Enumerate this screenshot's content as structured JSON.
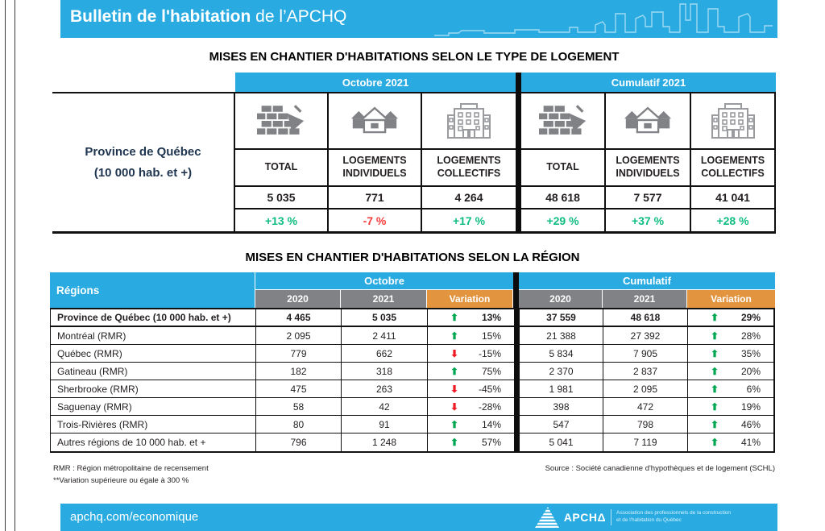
{
  "header": {
    "title_bold": "Bulletin de l'habitation",
    "title_rest": " de l’APCHQ"
  },
  "colors": {
    "blue": "#29ABE2",
    "gray": "#808285",
    "orange": "#E2943E",
    "green_arrow": "#00A651",
    "green_text": "#0FBD80",
    "red_arrow": "#ED1C24",
    "red_text": "#F43B3B",
    "navy_label": "#1F3550"
  },
  "glyphs": {
    "up": "⬆",
    "down": "⬇"
  },
  "table1": {
    "title": "MISES EN CHANTIER D'HABITATIONS SELON LE TYPE DE LOGEMENT",
    "row_label_line1": "Province de Québec",
    "row_label_line2": "(10 000 hab. et +)",
    "sections": [
      {
        "label": "Octobre 2021",
        "columns": [
          {
            "icon": "bricks-trowel-icon",
            "header": "TOTAL",
            "value": "5 035",
            "variation": "+13 %",
            "direction": "up"
          },
          {
            "icon": "houses-icon",
            "header": "LOGEMENTS INDIVIDUELS",
            "value": "771",
            "variation": "-7 %",
            "direction": "down"
          },
          {
            "icon": "apartment-building-icon",
            "header": "LOGEMENTS COLLECTIFS",
            "value": "4 264",
            "variation": "+17 %",
            "direction": "up"
          }
        ]
      },
      {
        "label": "Cumulatif 2021",
        "columns": [
          {
            "icon": "bricks-trowel-icon",
            "header": "TOTAL",
            "value": "48 618",
            "variation": "+29 %",
            "direction": "up"
          },
          {
            "icon": "houses-icon",
            "header": "LOGEMENTS INDIVIDUELS",
            "value": "7 577",
            "variation": "+37 %",
            "direction": "up"
          },
          {
            "icon": "apartment-building-icon",
            "header": "LOGEMENTS COLLECTIFS",
            "value": "41 041",
            "variation": "+28 %",
            "direction": "up"
          }
        ]
      }
    ]
  },
  "table2": {
    "title": "MISES EN CHANTIER D'HABITATIONS SELON LA RÉGION",
    "regions_header": "Régions",
    "group_headers": [
      "Octobre",
      "Cumulatif"
    ],
    "sub_headers": [
      "2020",
      "2021",
      "Variation"
    ],
    "rows": [
      {
        "region": "Province de Québec (10 000 hab. et +)",
        "bold": true,
        "octobre": {
          "y2020": "4 465",
          "y2021": "5 035",
          "variation": "13%",
          "direction": "up"
        },
        "cumulatif": {
          "y2020": "37 559",
          "y2021": "48 618",
          "variation": "29%",
          "direction": "up"
        }
      },
      {
        "region": "Montréal (RMR)",
        "bold": false,
        "octobre": {
          "y2020": "2 095",
          "y2021": "2 411",
          "variation": "15%",
          "direction": "up"
        },
        "cumulatif": {
          "y2020": "21 388",
          "y2021": "27 392",
          "variation": "28%",
          "direction": "up"
        }
      },
      {
        "region": "Québec (RMR)",
        "bold": false,
        "octobre": {
          "y2020": "779",
          "y2021": "662",
          "variation": "-15%",
          "direction": "down"
        },
        "cumulatif": {
          "y2020": "5 834",
          "y2021": "7 905",
          "variation": "35%",
          "direction": "up"
        }
      },
      {
        "region": "Gatineau (RMR)",
        "bold": false,
        "octobre": {
          "y2020": "182",
          "y2021": "318",
          "variation": "75%",
          "direction": "up"
        },
        "cumulatif": {
          "y2020": "2 370",
          "y2021": "2 837",
          "variation": "20%",
          "direction": "up"
        }
      },
      {
        "region": "Sherbrooke (RMR)",
        "bold": false,
        "octobre": {
          "y2020": "475",
          "y2021": "263",
          "variation": "-45%",
          "direction": "down"
        },
        "cumulatif": {
          "y2020": "1 981",
          "y2021": "2 095",
          "variation": "6%",
          "direction": "up"
        }
      },
      {
        "region": "Saguenay (RMR)",
        "bold": false,
        "octobre": {
          "y2020": "58",
          "y2021": "42",
          "variation": "-28%",
          "direction": "down"
        },
        "cumulatif": {
          "y2020": "398",
          "y2021": "472",
          "variation": "19%",
          "direction": "up"
        }
      },
      {
        "region": "Trois-Rivières (RMR)",
        "bold": false,
        "octobre": {
          "y2020": "80",
          "y2021": "91",
          "variation": "14%",
          "direction": "up"
        },
        "cumulatif": {
          "y2020": "547",
          "y2021": "798",
          "variation": "46%",
          "direction": "up"
        }
      },
      {
        "region": "Autres régions de 10 000 hab. et +",
        "bold": false,
        "octobre": {
          "y2020": "796",
          "y2021": "1 248",
          "variation": "57%",
          "direction": "up"
        },
        "cumulatif": {
          "y2020": "5 041",
          "y2021": "7 119",
          "variation": "41%",
          "direction": "up"
        }
      }
    ]
  },
  "footnotes": {
    "rmr": "RMR : Région métropolitaine de recensement",
    "variation_note": "**Variation supérieure ou égale à 300 %",
    "source": "Source : Société canadienne d'hypothèques et de logement (SCHL)"
  },
  "footer": {
    "url": "apchq.com/economique",
    "logo_word": "APCH",
    "logo_tagline_line1": "Association des professionnels de la construction",
    "logo_tagline_line2": "et de l'habitation du Québec"
  }
}
